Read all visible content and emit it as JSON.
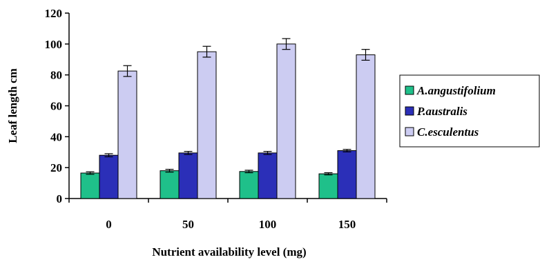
{
  "chart_data": {
    "type": "bar",
    "title": "",
    "xlabel": "Nutrient availability level (mg)",
    "ylabel": "Leaf length cm",
    "categories": [
      "0",
      "50",
      "100",
      "150"
    ],
    "ylim": [
      0,
      120
    ],
    "yticks": [
      0,
      20,
      40,
      60,
      80,
      100,
      120
    ],
    "grid": false,
    "legend_position": "right",
    "series": [
      {
        "name": "A.angustifolium",
        "color": "#1fc08a",
        "values": [
          16.5,
          18,
          17.5,
          16
        ],
        "errors": [
          0.8,
          0.9,
          0.8,
          0.7
        ]
      },
      {
        "name": "P.australis",
        "color": "#2b2fb8",
        "values": [
          28,
          29.5,
          29.5,
          31
        ],
        "errors": [
          1.0,
          1.0,
          1.0,
          0.8
        ]
      },
      {
        "name": "C.esculentus",
        "color": "#ccccf2",
        "values": [
          82.5,
          95,
          100,
          93
        ],
        "errors": [
          3.5,
          3.5,
          3.5,
          3.5
        ]
      }
    ]
  }
}
